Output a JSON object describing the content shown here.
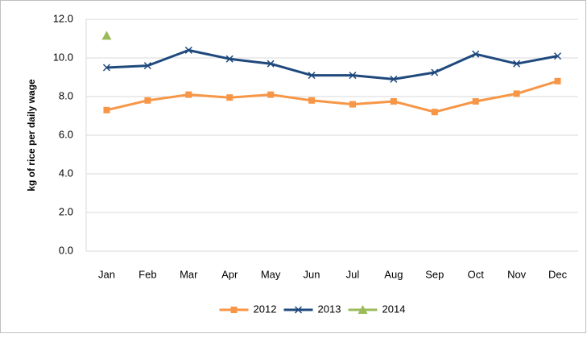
{
  "chart_data": {
    "type": "line",
    "y_label": "kg of rice per daily  wage",
    "categories": [
      "Jan",
      "Feb",
      "Mar",
      "Apr",
      "May",
      "Jun",
      "Jul",
      "Aug",
      "Sep",
      "Oct",
      "Nov",
      "Dec"
    ],
    "series": [
      {
        "name": "2012",
        "color": "#f79646",
        "marker": "square",
        "values": [
          7.3,
          7.8,
          8.1,
          7.95,
          8.1,
          7.8,
          7.6,
          7.75,
          7.2,
          7.75,
          8.15,
          8.8
        ]
      },
      {
        "name": "2013",
        "color": "#1f497d",
        "marker": "x",
        "values": [
          9.5,
          9.6,
          10.4,
          9.95,
          9.7,
          9.1,
          9.1,
          8.9,
          9.25,
          10.2,
          9.7,
          10.1
        ]
      },
      {
        "name": "2014",
        "color": "#9bbb59",
        "marker": "triangle",
        "values": [
          11.15,
          null,
          null,
          null,
          null,
          null,
          null,
          null,
          null,
          null,
          null,
          null
        ]
      }
    ],
    "ylim": [
      0,
      12
    ],
    "yticks": [
      {
        "value": 0,
        "label": "0.0"
      },
      {
        "value": 2,
        "label": "2.0"
      },
      {
        "value": 4,
        "label": "4.0"
      },
      {
        "value": 6,
        "label": "6.0"
      },
      {
        "value": 8,
        "label": "8.0"
      },
      {
        "value": 10,
        "label": "10.0"
      },
      {
        "value": 12,
        "label": "12.0"
      }
    ],
    "grid": true,
    "legend": "bottom"
  }
}
